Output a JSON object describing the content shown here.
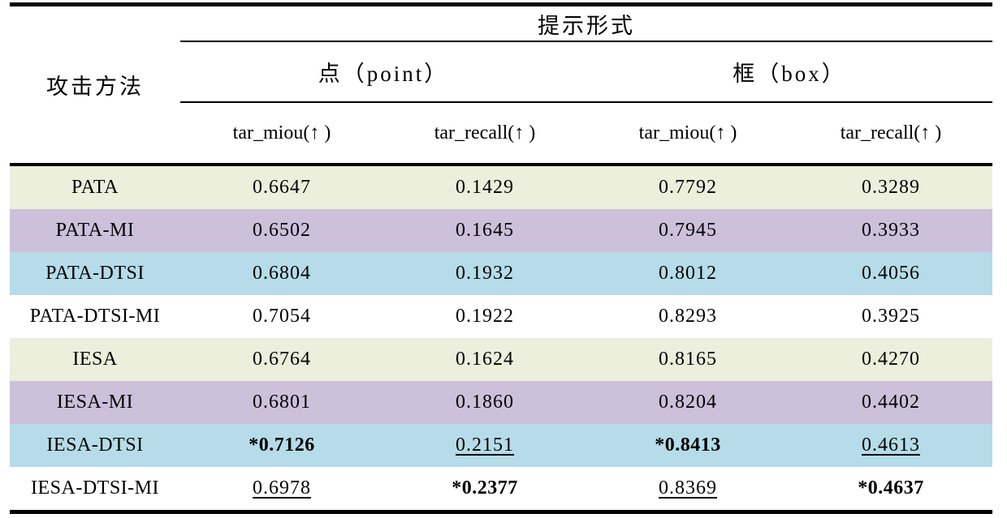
{
  "table": {
    "corner_header": "攻击方法",
    "top_header": "提示形式",
    "groups": [
      {
        "label": "点（point）",
        "sub": [
          "tar_miou(↑ )",
          "tar_recall(↑ )"
        ]
      },
      {
        "label": "框（box）",
        "sub": [
          "tar_miou(↑ )",
          "tar_recall(↑ )"
        ]
      }
    ],
    "rows": [
      {
        "method": "PATA",
        "values": [
          "0.6647",
          "0.1429",
          "0.7792",
          "0.3289"
        ]
      },
      {
        "method": "PATA-MI",
        "values": [
          "0.6502",
          "0.1645",
          "0.7945",
          "0.3933"
        ]
      },
      {
        "method": "PATA-DTSI",
        "values": [
          "0.6804",
          "0.1932",
          "0.8012",
          "0.4056"
        ]
      },
      {
        "method": "PATA-DTSI-MI",
        "values": [
          "0.7054",
          "0.1922",
          "0.8293",
          "0.3925"
        ]
      },
      {
        "method": "IESA",
        "values": [
          "0.6764",
          "0.1624",
          "0.8165",
          "0.4270"
        ]
      },
      {
        "method": "IESA-MI",
        "values": [
          "0.6801",
          "0.1860",
          "0.8204",
          "0.4402"
        ]
      },
      {
        "method": "IESA-DTSI",
        "values": [
          "*0.7126",
          "0.2151",
          "*0.8413",
          "0.4613"
        ]
      },
      {
        "method": "IESA-DTSI-MI",
        "values": [
          "0.6978",
          "*0.2377",
          "0.8369",
          "*0.4637"
        ]
      }
    ]
  },
  "colors": {
    "border_color": "#000000",
    "row_green": "#ebefdc",
    "row_purple": "#ccc0db",
    "row_blue": "#b5dce8",
    "row_white": "#ffffff"
  }
}
